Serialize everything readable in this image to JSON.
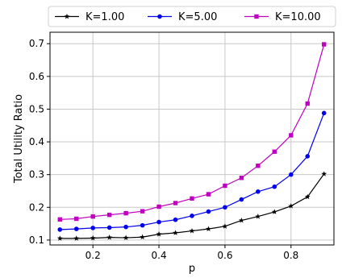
{
  "chart_data": {
    "type": "line",
    "xlabel": "p",
    "ylabel": "Total Utility Ratio",
    "xlim": [
      0.07,
      0.93
    ],
    "ylim": [
      0.085,
      0.735
    ],
    "xticks": [
      0.2,
      0.4,
      0.6,
      0.8
    ],
    "xtick_labels": [
      "0.2",
      "0.4",
      "0.6",
      "0.8"
    ],
    "yticks": [
      0.1,
      0.2,
      0.3,
      0.4,
      0.5,
      0.6,
      0.7
    ],
    "ytick_labels": [
      "0.1",
      "0.2",
      "0.3",
      "0.4",
      "0.5",
      "0.6",
      "0.7"
    ],
    "grid": true,
    "legend_position": "top, outside plot",
    "x": [
      0.1,
      0.15,
      0.2,
      0.25,
      0.3,
      0.35,
      0.4,
      0.45,
      0.5,
      0.55,
      0.6,
      0.65,
      0.7,
      0.75,
      0.8,
      0.85,
      0.9
    ],
    "series": [
      {
        "name": "K=1.00",
        "color": "#000000",
        "marker": "star",
        "values": [
          0.105,
          0.105,
          0.106,
          0.108,
          0.107,
          0.109,
          0.118,
          0.122,
          0.128,
          0.134,
          0.142,
          0.16,
          0.172,
          0.186,
          0.204,
          0.232,
          0.302
        ]
      },
      {
        "name": "K=5.00",
        "color": "#0000ee",
        "marker": "circle",
        "values": [
          0.132,
          0.134,
          0.137,
          0.138,
          0.14,
          0.145,
          0.155,
          0.162,
          0.174,
          0.187,
          0.2,
          0.224,
          0.248,
          0.263,
          0.3,
          0.356,
          0.488
        ]
      },
      {
        "name": "K=10.00",
        "color": "#c000c0",
        "marker": "square",
        "values": [
          0.163,
          0.165,
          0.172,
          0.177,
          0.182,
          0.188,
          0.202,
          0.213,
          0.227,
          0.24,
          0.266,
          0.29,
          0.327,
          0.37,
          0.42,
          0.517,
          0.698
        ]
      }
    ]
  }
}
